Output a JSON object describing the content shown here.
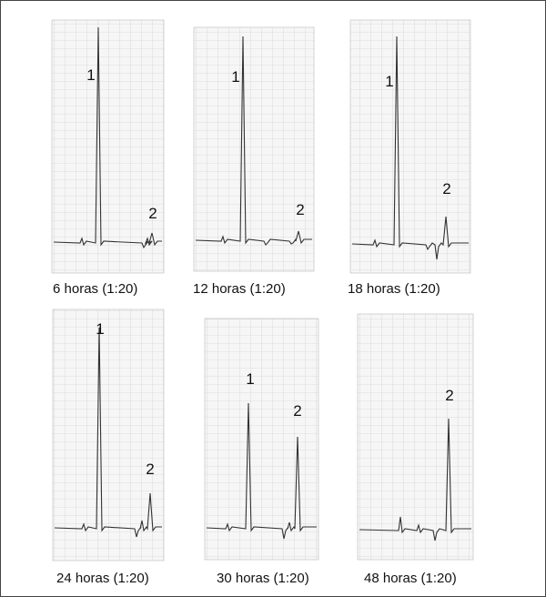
{
  "panels": [
    {
      "caption": "6 horas (1:20)",
      "peaks": [
        "1",
        "2"
      ]
    },
    {
      "caption": "12 horas (1:20)",
      "peaks": [
        "1",
        "2"
      ]
    },
    {
      "caption": "18 horas (1:20)",
      "peaks": [
        "1",
        "2"
      ]
    },
    {
      "caption": "24 horas (1:20)",
      "peaks": [
        "1",
        "2"
      ]
    },
    {
      "caption": "30 horas (1:20)",
      "peaks": [
        "1",
        "2"
      ]
    },
    {
      "caption": "48 horas (1:20)",
      "peaks": [
        "2"
      ]
    }
  ]
}
